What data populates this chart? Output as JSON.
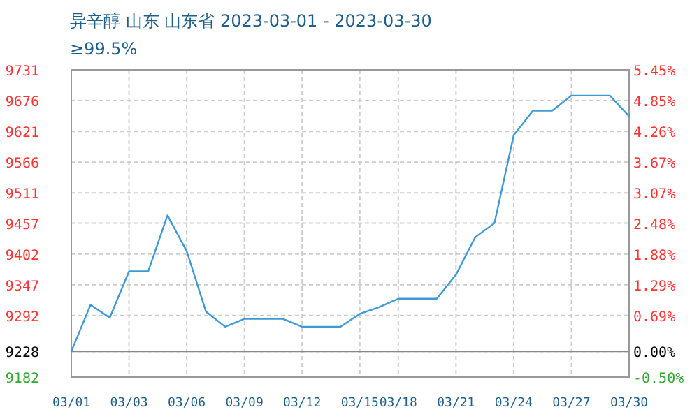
{
  "chart_data": {
    "type": "line",
    "title": "异辛醇 山东 山东省 2023-03-01 - 2023-03-30",
    "subtitle": "≥99.5%",
    "categories": [
      "03/01",
      null,
      null,
      "03/03",
      null,
      null,
      "03/06",
      null,
      null,
      "03/09",
      null,
      null,
      "03/12",
      null,
      null,
      "03/15",
      null,
      "03/18",
      null,
      null,
      "03/21",
      null,
      null,
      "03/24",
      null,
      null,
      "03/27",
      null,
      null,
      "03/30"
    ],
    "series": [
      {
        "color": "#3d9ad6",
        "values": [
          9228,
          9311,
          9288,
          9371,
          9371,
          9471,
          9407,
          9299,
          9272,
          9286,
          9286,
          9286,
          9272,
          9272,
          9272,
          9295,
          9307,
          9322,
          9322,
          9322,
          9365,
          9432,
          9457,
          9614,
          9658,
          9658,
          9685,
          9685,
          9685,
          9648
        ]
      }
    ],
    "ylim": [
      9182,
      9731
    ],
    "yticks": [
      9182,
      9228,
      9292,
      9347,
      9402,
      9457,
      9511,
      9566,
      9621,
      9676,
      9731
    ],
    "y2lim": [
      -0.5,
      5.45
    ],
    "y2ticks": [
      {
        "value": -0.5,
        "label": "-0.50%"
      },
      {
        "value": 0,
        "label": "0.00%"
      },
      {
        "value": 0.69,
        "label": "0.69%"
      },
      {
        "value": 1.29,
        "label": "1.29%"
      },
      {
        "value": 1.88,
        "label": "1.88%"
      },
      {
        "value": 2.48,
        "label": "2.48%"
      },
      {
        "value": 3.07,
        "label": "3.07%"
      },
      {
        "value": 3.67,
        "label": "3.67%"
      },
      {
        "value": 4.26,
        "label": "4.26%"
      },
      {
        "value": 4.85,
        "label": "4.85%"
      },
      {
        "value": 5.45,
        "label": "5.45%"
      }
    ],
    "ref_lines": [
      {
        "axis": "y",
        "value": 9228,
        "color": "#888888"
      }
    ],
    "grid": true,
    "marker": "none",
    "line_style": "solid"
  }
}
